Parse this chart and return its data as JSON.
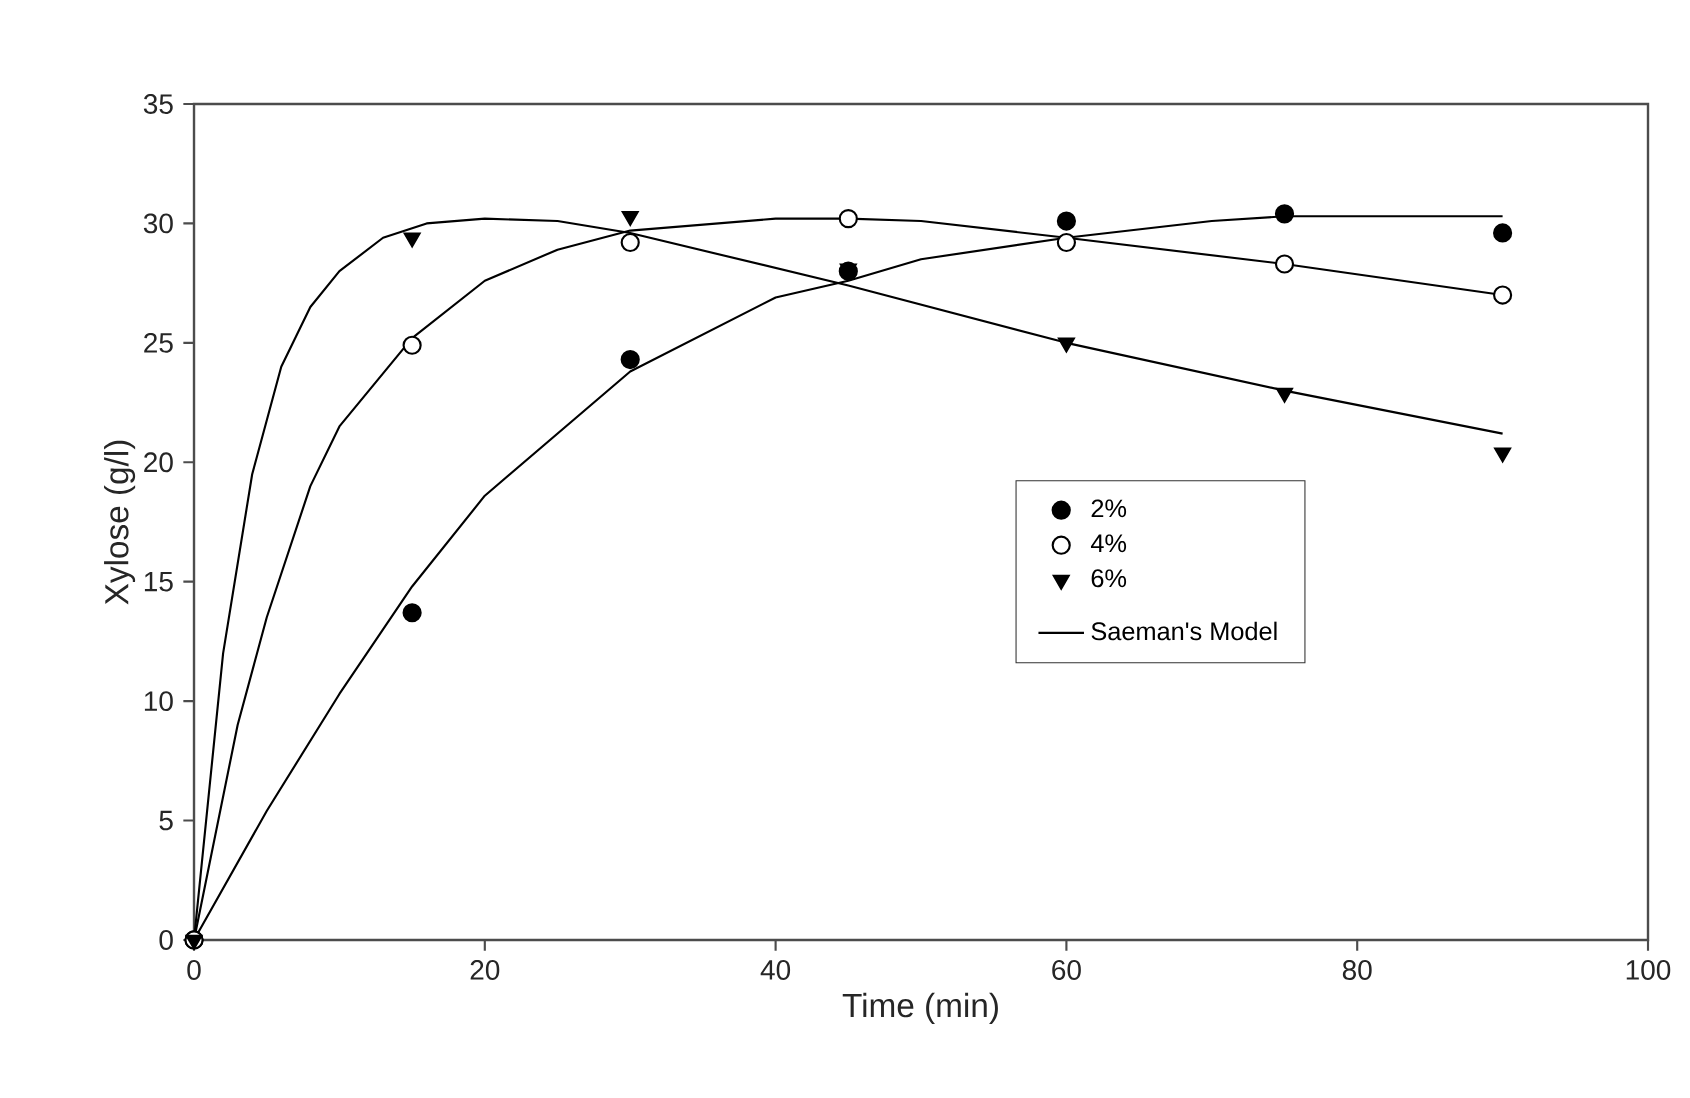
{
  "chart_data": {
    "type": "scatter",
    "xlabel": "Time (min)",
    "ylabel": "Xylose (g/l)",
    "xlim": [
      0,
      100
    ],
    "ylim": [
      0,
      35
    ],
    "xticks": [
      0,
      20,
      40,
      60,
      80,
      100
    ],
    "yticks": [
      0,
      5,
      10,
      15,
      20,
      25,
      30,
      35
    ],
    "grid": false,
    "legend": "right",
    "series": [
      {
        "name": "2%",
        "marker": "circle",
        "color": "#000000",
        "x": [
          0,
          15,
          30,
          45,
          60,
          75,
          90
        ],
        "values": [
          0,
          13.7,
          24.3,
          28.0,
          30.1,
          30.4,
          29.6
        ]
      },
      {
        "name": "4%",
        "marker": "circle",
        "color": "#ffffff",
        "x": [
          0,
          15,
          30,
          45,
          60,
          75,
          90
        ],
        "values": [
          0,
          24.9,
          29.2,
          30.2,
          29.2,
          28.3,
          27.0
        ]
      },
      {
        "name": "6%",
        "marker": "triangle",
        "color": "#000000",
        "x": [
          0,
          15,
          30,
          45,
          60,
          75,
          90
        ],
        "values": [
          0,
          29.4,
          30.3,
          28.1,
          25.0,
          22.9,
          20.4
        ]
      },
      {
        "name": "Saeman's Model",
        "type": "line",
        "marker": "none",
        "line_style": "solid",
        "color": "#000000",
        "x": [
          0,
          5,
          10,
          15,
          20,
          30,
          40,
          45,
          50,
          60,
          70,
          75,
          80,
          90
        ],
        "values": [
          0,
          5.4,
          10.3,
          14.8,
          18.6,
          23.8,
          26.9,
          27.6,
          28.5,
          29.4,
          30.1,
          30.3,
          30.3,
          30.3
        ]
      },
      {
        "type": "line",
        "marker": "none",
        "line_style": "solid",
        "color": "#000000",
        "x": [
          0,
          3,
          5,
          8,
          10,
          15,
          20,
          25,
          30,
          40,
          45,
          50,
          60,
          75,
          90
        ],
        "values": [
          0,
          9,
          13.5,
          19,
          21.5,
          25.2,
          27.6,
          28.9,
          29.7,
          30.2,
          30.2,
          30.1,
          29.4,
          28.3,
          27.0
        ]
      },
      {
        "type": "line",
        "marker": "none",
        "line_style": "solid",
        "color": "#000000",
        "x": [
          0,
          2,
          4,
          6,
          8,
          10,
          13,
          16,
          20,
          25,
          30,
          45,
          60,
          75,
          90
        ],
        "values": [
          0,
          12,
          19.5,
          24,
          26.5,
          28,
          29.4,
          30.0,
          30.2,
          30.1,
          29.6,
          27.4,
          25.0,
          23.0,
          21.2
        ]
      }
    ]
  }
}
